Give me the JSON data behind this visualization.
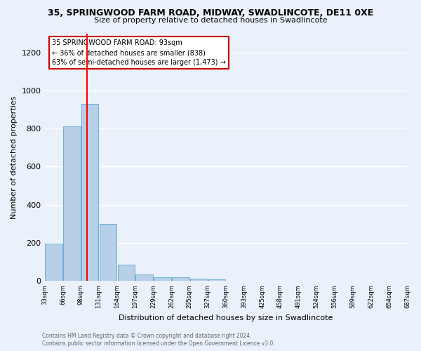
{
  "title_line1": "35, SPRINGWOOD FARM ROAD, MIDWAY, SWADLINCOTE, DE11 0XE",
  "title_line2": "Size of property relative to detached houses in Swadlincote",
  "xlabel": "Distribution of detached houses by size in Swadlincote",
  "ylabel": "Number of detached properties",
  "footnote1": "Contains HM Land Registry data © Crown copyright and database right 2024.",
  "footnote2": "Contains public sector information licensed under the Open Government Licence v3.0.",
  "annotation_line1": "35 SPRINGWOOD FARM ROAD: 93sqm",
  "annotation_line2": "← 36% of detached houses are smaller (838)",
  "annotation_line3": "63% of semi-detached houses are larger (1,473) →",
  "bar_heights": [
    195,
    810,
    930,
    300,
    85,
    35,
    20,
    18,
    12,
    10,
    0,
    0,
    0,
    0,
    0,
    0,
    0,
    0,
    0,
    0
  ],
  "n_bins": 20,
  "bar_color": "#b8cfe8",
  "bar_edge_color": "#6baed6",
  "red_line_bin": 1.82,
  "ylim": [
    0,
    1300
  ],
  "yticks": [
    0,
    200,
    400,
    600,
    800,
    1000,
    1200
  ],
  "xtick_labels": [
    "33sqm",
    "66sqm",
    "98sqm",
    "131sqm",
    "164sqm",
    "197sqm",
    "229sqm",
    "262sqm",
    "295sqm",
    "327sqm",
    "360sqm",
    "393sqm",
    "425sqm",
    "458sqm",
    "491sqm",
    "524sqm",
    "556sqm",
    "589sqm",
    "622sqm",
    "654sqm",
    "687sqm"
  ],
  "bg_color": "#eaf1fb",
  "grid_color": "#ffffff",
  "annotation_box_facecolor": "#ffffff",
  "annotation_box_edgecolor": "#cc0000",
  "title1_fontsize": 9,
  "title2_fontsize": 8,
  "ylabel_fontsize": 8,
  "xlabel_fontsize": 8,
  "ytick_fontsize": 8,
  "xtick_fontsize": 6,
  "annot_fontsize": 7,
  "footnote_fontsize": 5.5,
  "footnote_color": "#666666"
}
